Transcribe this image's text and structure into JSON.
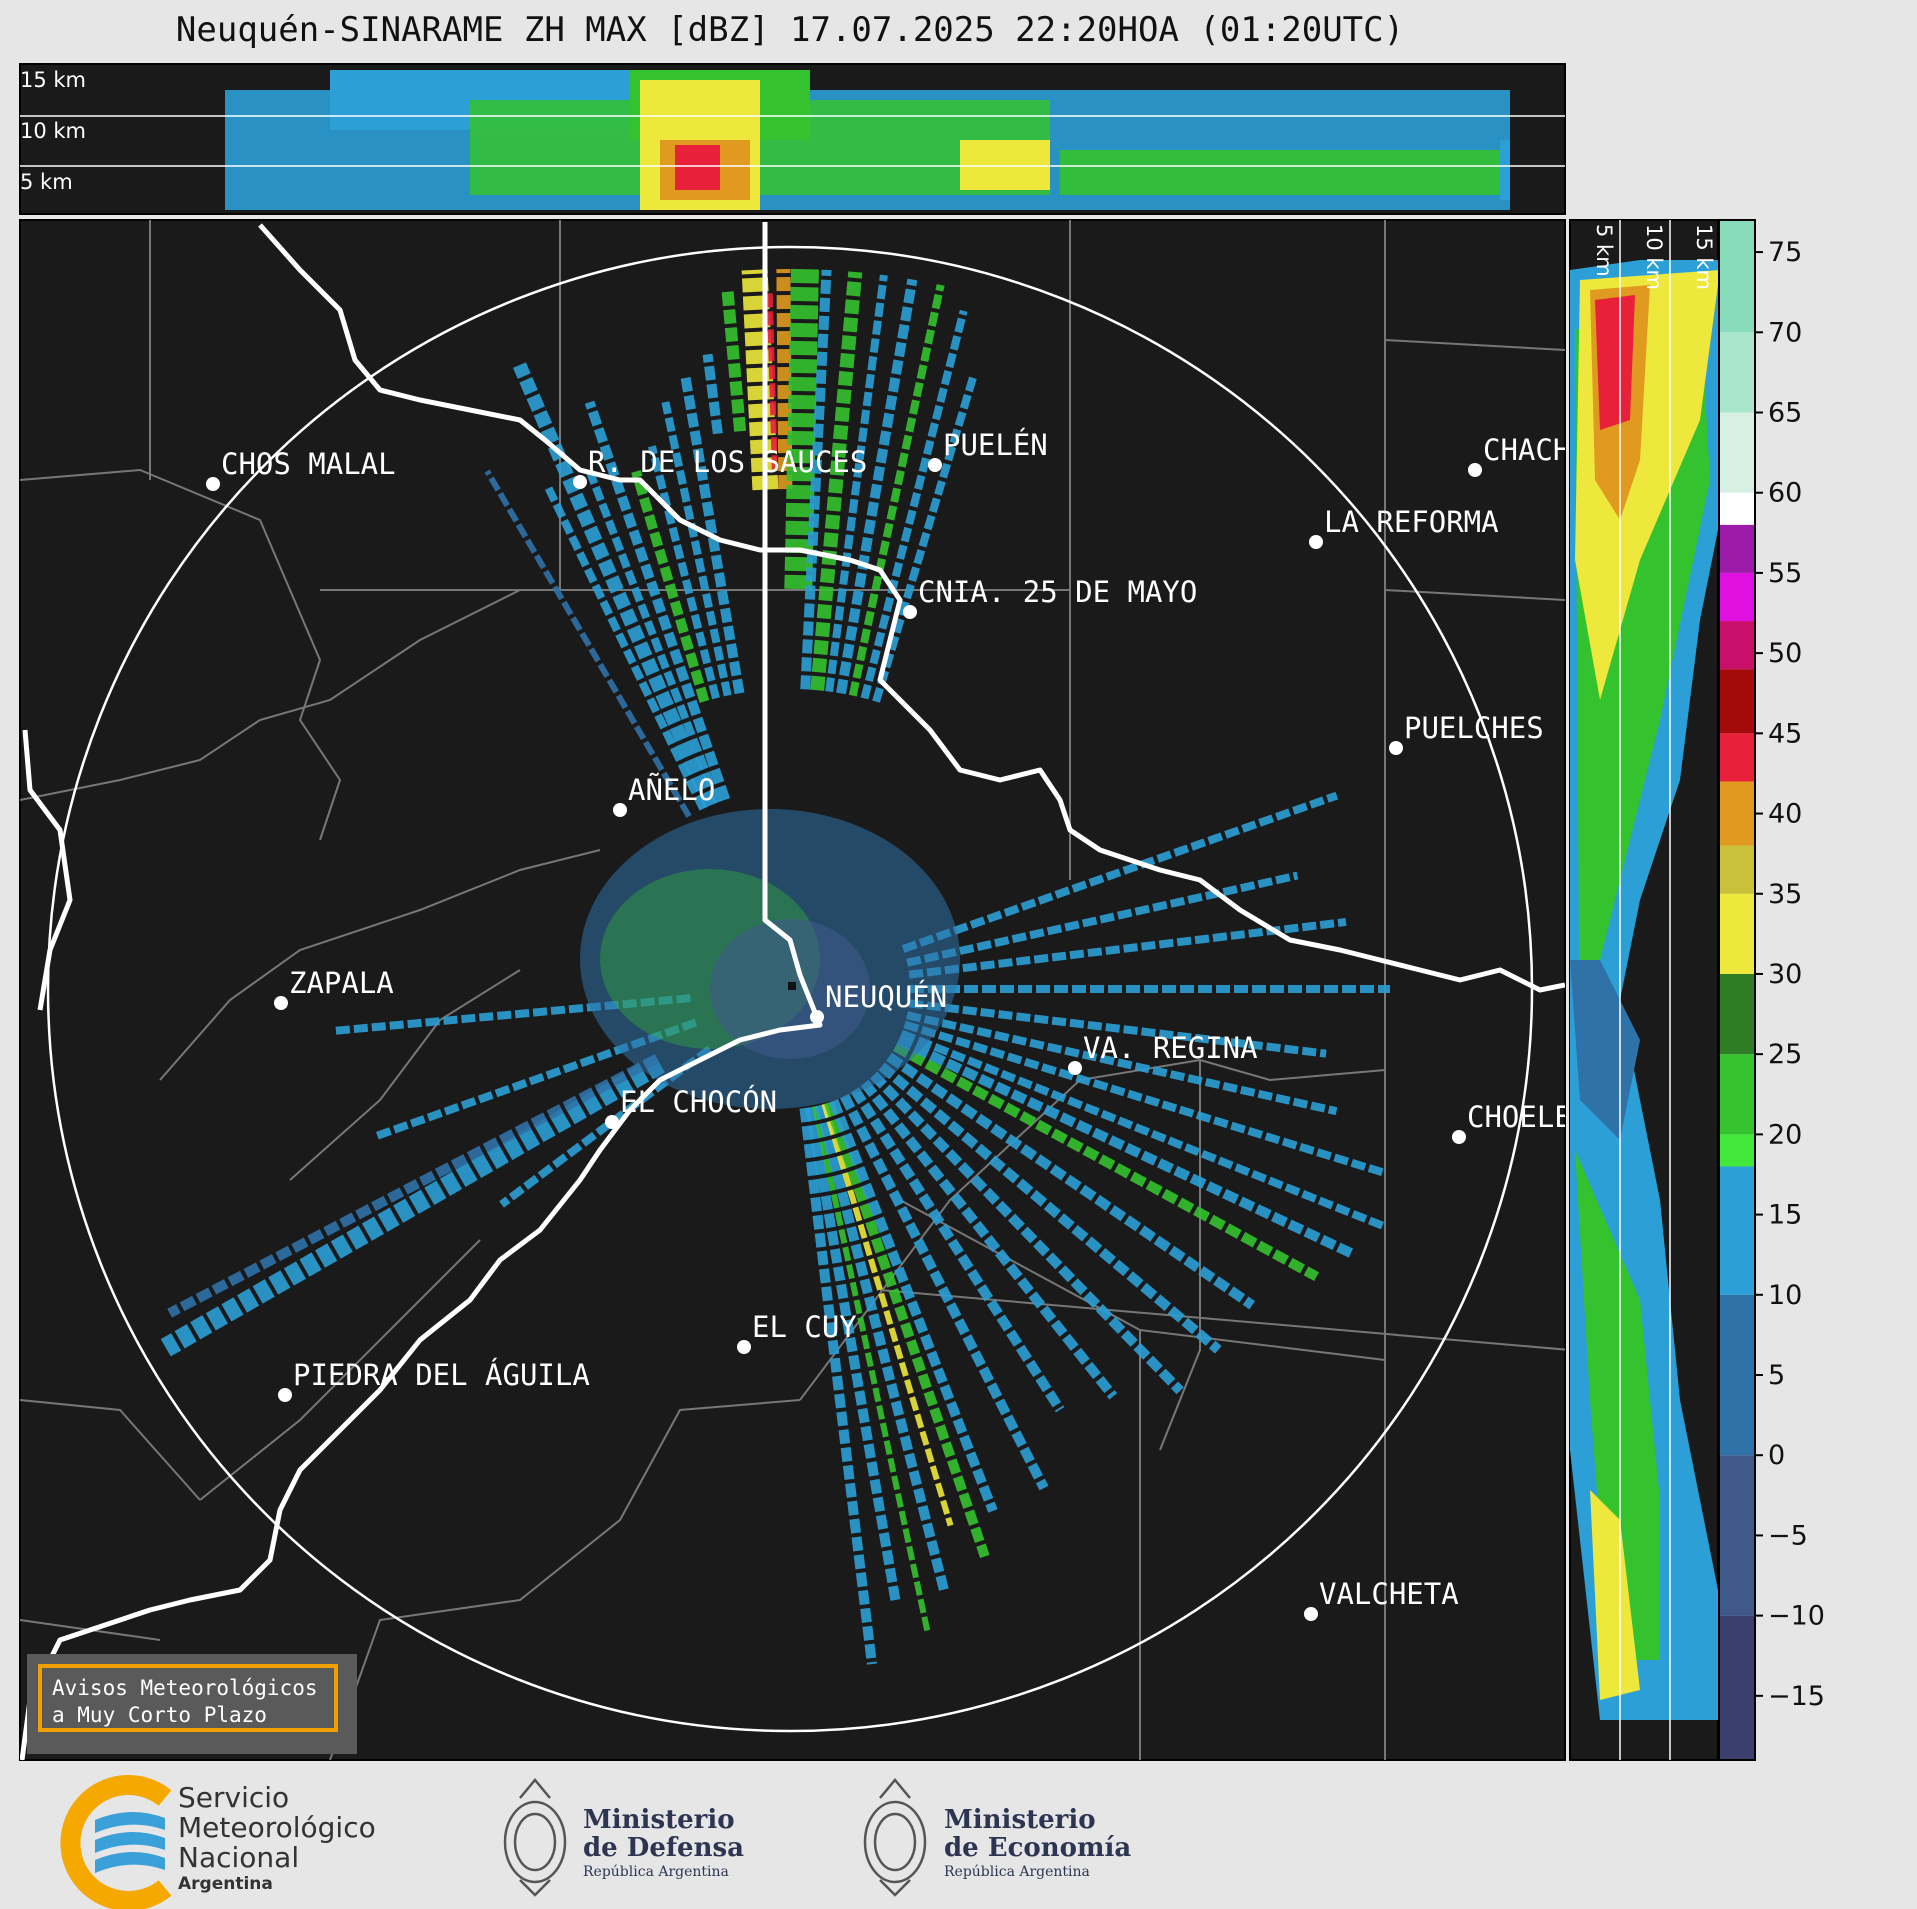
{
  "title": "Neuquén-SINARAME ZH MAX [dBZ] 17.07.2025 22:20HOA (01:20UTC)",
  "top_panel": {
    "height_labels": [
      "15 km",
      "10 km",
      "5 km"
    ]
  },
  "side_panel": {
    "height_labels": [
      "5 km",
      "10 km",
      "15 km"
    ]
  },
  "cities": [
    {
      "name": "CHOS MALAL"
    },
    {
      "name": "R. DE LOS SAUCES"
    },
    {
      "name": "PUELÉN"
    },
    {
      "name": "CHACH"
    },
    {
      "name": "LA REFORMA"
    },
    {
      "name": "CNIA. 25 DE MAYO"
    },
    {
      "name": "PUELCHES"
    },
    {
      "name": "AÑELO"
    },
    {
      "name": "ZAPALA"
    },
    {
      "name": "NEUQUÉN"
    },
    {
      "name": "VA. REGINA"
    },
    {
      "name": "EL CHOCÓN"
    },
    {
      "name": "CHOELE"
    },
    {
      "name": "EL CUY"
    },
    {
      "name": "PIEDRA DEL ÁGUILA"
    },
    {
      "name": "VALCHETA"
    }
  ],
  "colorbar": {
    "unit": "dBZ",
    "ticks": [
      "75",
      "70",
      "65",
      "60",
      "55",
      "50",
      "45",
      "40",
      "35",
      "30",
      "25",
      "20",
      "15",
      "10",
      "5",
      "0",
      "−5",
      "−10",
      "−15"
    ],
    "tick_values": [
      75,
      70,
      65,
      60,
      55,
      50,
      45,
      40,
      35,
      30,
      25,
      20,
      15,
      10,
      5,
      0,
      -5,
      -10,
      -15
    ],
    "range": [
      -19,
      77
    ],
    "stops": [
      {
        "from": -19,
        "to": -10,
        "color": "#3b3f6e"
      },
      {
        "from": -10,
        "to": 0,
        "color": "#3f5a8a"
      },
      {
        "from": 0,
        "to": 10,
        "color": "#2f72a8"
      },
      {
        "from": 10,
        "to": 18,
        "color": "#2b9fd6"
      },
      {
        "from": 18,
        "to": 20,
        "color": "#41e83a"
      },
      {
        "from": 20,
        "to": 25,
        "color": "#34c22f"
      },
      {
        "from": 25,
        "to": 30,
        "color": "#2e7d25"
      },
      {
        "from": 30,
        "to": 35,
        "color": "#ede83b"
      },
      {
        "from": 35,
        "to": 38,
        "color": "#c9c13a"
      },
      {
        "from": 38,
        "to": 42,
        "color": "#e09a20"
      },
      {
        "from": 42,
        "to": 45,
        "color": "#e8203a"
      },
      {
        "from": 45,
        "to": 49,
        "color": "#a50a0a"
      },
      {
        "from": 49,
        "to": 52,
        "color": "#c8106a"
      },
      {
        "from": 52,
        "to": 55,
        "color": "#e010e0"
      },
      {
        "from": 55,
        "to": 58,
        "color": "#9b1aa8"
      },
      {
        "from": 58,
        "to": 60,
        "color": "#ffffff"
      },
      {
        "from": 60,
        "to": 65,
        "color": "#d8f0e4"
      },
      {
        "from": 65,
        "to": 70,
        "color": "#a9e6cc"
      },
      {
        "from": 70,
        "to": 77,
        "color": "#88dcbc"
      }
    ]
  },
  "badge": {
    "line1": "Avisos Meteorológicos",
    "line2": "a Muy Corto Plazo"
  },
  "logos": {
    "smn": {
      "line1": "Servicio",
      "line2": "Meteorológico",
      "line3": "Nacional",
      "country": "Argentina"
    },
    "defensa": {
      "line1": "Ministerio",
      "line2": "de Defensa",
      "sub": "República Argentina"
    },
    "economia": {
      "line1": "Ministerio",
      "line2": "de Economía",
      "sub": "República Argentina"
    }
  },
  "colors": {
    "map_bg": "#1a1a1a",
    "page_bg": "#e6e6e6",
    "badge_border": "#f0a000"
  }
}
